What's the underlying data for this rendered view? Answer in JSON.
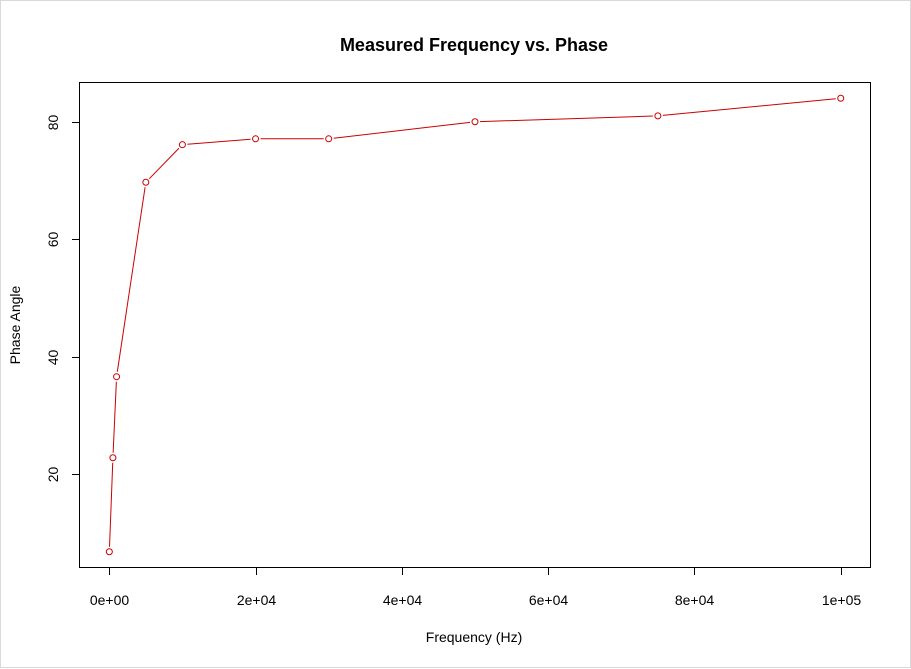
{
  "chart_data": {
    "type": "line",
    "title": "Measured Frequency vs. Phase",
    "xlabel": "Frequency (Hz)",
    "ylabel": "Phase Angle",
    "x": [
      10,
      500,
      1000,
      5000,
      10000,
      20000,
      30000,
      50000,
      75000,
      100000
    ],
    "series": [
      {
        "values": [
          6.8,
          22.8,
          36.6,
          69.7,
          76.1,
          77.1,
          77.1,
          80.0,
          81.0,
          84.0
        ]
      }
    ],
    "xlim": [
      -4000,
      104000
    ],
    "ylim": [
      4.2,
      86.6
    ],
    "x_ticks": [
      0,
      20000,
      40000,
      60000,
      80000,
      100000
    ],
    "x_tick_labels": [
      "0e+00",
      "2e+04",
      "4e+04",
      "6e+04",
      "8e+04",
      "1e+05"
    ],
    "y_ticks": [
      20,
      40,
      60,
      80
    ],
    "y_tick_labels": [
      "20",
      "40",
      "60",
      "80"
    ],
    "grid": false,
    "line_color": "#cc0000",
    "marker": "open-circle"
  }
}
